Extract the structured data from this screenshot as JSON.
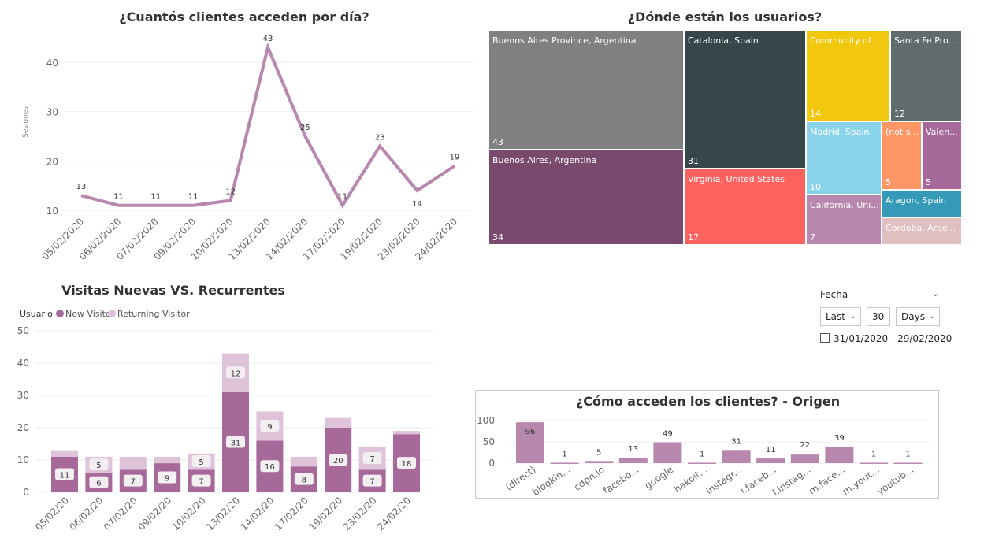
{
  "line_chart": {
    "title": "¿Cuantós clientes acceden por día?",
    "ylabel": "Sesiones"
  },
  "treemap": {
    "title": "¿Dónde están los usuarios?"
  },
  "stacked_chart": {
    "title": "Visitas Nuevas VS. Recurrentes",
    "legend_title": "Usuario"
  },
  "origin_chart": {
    "title": "¿Cómo acceden los clientes? - Origen"
  },
  "slicer": {
    "label": "Fecha",
    "mode": "Last",
    "amount": "30",
    "unit": "Days",
    "range": "31/01/2020 - 29/02/2020",
    "icon": "calendar-icon"
  },
  "chart_data": [
    {
      "type": "line",
      "title": "¿Cuantós clientes acceden por día?",
      "ylabel": "Sesiones",
      "x": [
        "05/02/2020",
        "06/02/2020",
        "07/02/2020",
        "09/02/2020",
        "10/02/2020",
        "13/02/2020",
        "14/02/2020",
        "17/02/2020",
        "19/02/2020",
        "23/02/2020",
        "24/02/2020"
      ],
      "values": [
        13,
        11,
        11,
        11,
        12,
        43,
        25,
        11,
        23,
        14,
        19
      ],
      "yticks": [
        "10",
        "20",
        "30",
        "40"
      ],
      "ylim": [
        10,
        45
      ],
      "color": "#b887ad",
      "grid": true
    },
    {
      "type": "treemap",
      "title": "¿Dónde están los usuarios?",
      "items": [
        {
          "label": "Buenos Aires Province, Argentina",
          "value": "43",
          "color": "#808080"
        },
        {
          "label": "Buenos Aires, Argentina",
          "value": "34",
          "color": "#7a4a6e"
        },
        {
          "label": "Catalonia, Spain",
          "value": "31",
          "color": "#374649"
        },
        {
          "label": "Virginia, United States",
          "value": "17",
          "color": "#fd625e"
        },
        {
          "label": "Community of ...",
          "value": "14",
          "color": "#f2c80f"
        },
        {
          "label": "Santa Fe Pro...",
          "value": "12",
          "color": "#5f6b6d"
        },
        {
          "label": "Madrid, Spain",
          "value": "10",
          "color": "#8ad4eb"
        },
        {
          "label": "(not s...",
          "value": "5",
          "color": "#fe9666"
        },
        {
          "label": "Valen...",
          "value": "5",
          "color": "#a66999"
        },
        {
          "label": "California, Uni...",
          "value": "7",
          "color": "#b887ad"
        },
        {
          "label": "Aragon, Spain",
          "value": "",
          "color": "#3599b8"
        },
        {
          "label": "Cordoba, Arge...",
          "value": "",
          "color": "#dfbfbf"
        }
      ]
    },
    {
      "type": "bar",
      "stacked": true,
      "title": "Visitas Nuevas VS. Recurrentes",
      "legend_title": "Usuario",
      "legend": "top-left",
      "categories": [
        "05/02/20",
        "06/02/20",
        "07/02/20",
        "09/02/20",
        "10/02/20",
        "13/02/20",
        "14/02/20",
        "17/02/20",
        "19/02/20",
        "23/02/20",
        "24/02/20"
      ],
      "yticks": [
        "0",
        "10",
        "20",
        "30",
        "40",
        "50"
      ],
      "ylim": [
        0,
        50
      ],
      "series": [
        {
          "name": "New Visitor",
          "color": "#a66999",
          "values": [
            11,
            6,
            7,
            9,
            7,
            31,
            16,
            8,
            20,
            7,
            18
          ],
          "labels": [
            "11",
            "6",
            "7",
            "9",
            "7",
            "31",
            "16",
            "8",
            "20",
            "7",
            "18"
          ]
        },
        {
          "name": "Returning Visitor",
          "color": "#dfc3d9",
          "values": [
            2,
            5,
            4,
            2,
            5,
            12,
            9,
            3,
            3,
            7,
            1
          ],
          "labels": [
            "",
            "5",
            "",
            "",
            "5",
            "12",
            "9",
            "",
            "",
            "7",
            ""
          ]
        }
      ]
    },
    {
      "type": "bar",
      "title": "¿Cómo acceden los clientes? - Origen",
      "categories": [
        "(direct)",
        "blogkin...",
        "cdpn.io",
        "facebo...",
        "google",
        "hakoit...",
        "instagr...",
        "l.faceb...",
        "l.instag...",
        "m.face...",
        "m.yout...",
        "youtub..."
      ],
      "values": [
        96,
        1,
        5,
        13,
        49,
        1,
        31,
        11,
        22,
        39,
        1,
        1
      ],
      "yticks": [
        "0",
        "50",
        "100"
      ],
      "ylim": [
        0,
        100
      ],
      "color": "#b887ad"
    }
  ]
}
